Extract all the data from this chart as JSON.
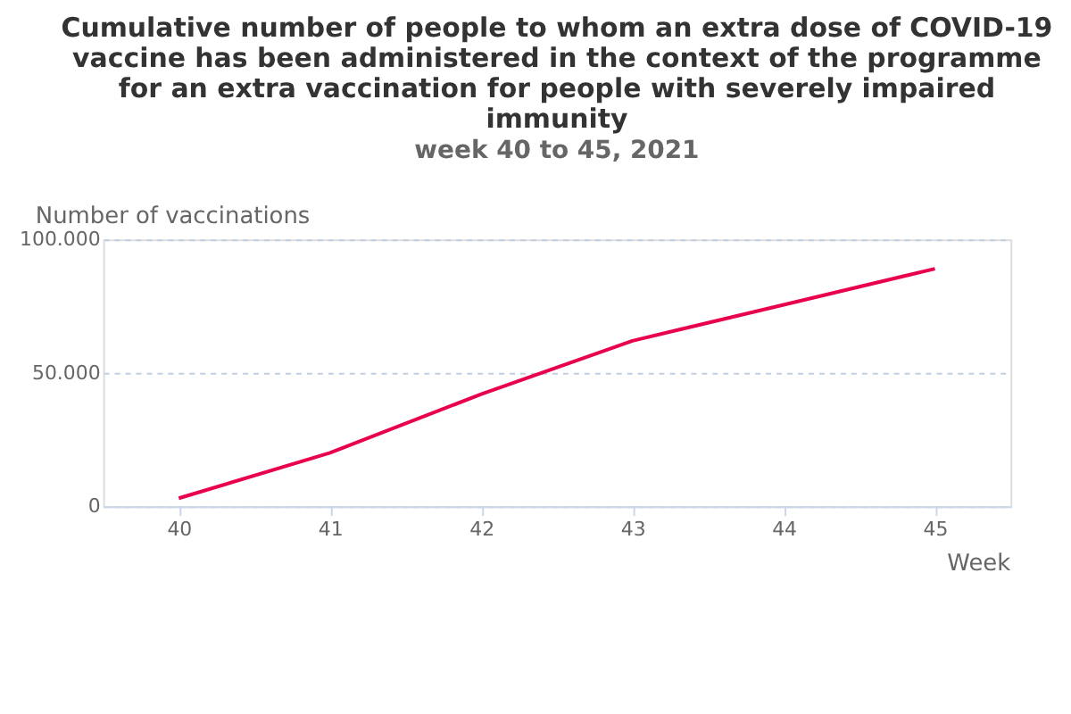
{
  "chart_data": {
    "type": "line",
    "title": "Cumulative number of people to whom an extra dose of COVID-19 vaccine has been administered in the context of the programme for an extra vaccination for people with severely impaired immunity",
    "subtitle": "week 40 to 45, 2021",
    "xlabel": "Week",
    "ylabel": "Number of vaccinations",
    "categories": [
      "40",
      "41",
      "42",
      "43",
      "44",
      "45"
    ],
    "series": [
      {
        "color": "#e8004c",
        "values": [
          3000,
          20000,
          42000,
          62000,
          75500,
          89000
        ]
      }
    ],
    "ylim": [
      0,
      100000
    ],
    "yticks": [
      {
        "value": 0,
        "label": "0"
      },
      {
        "value": 50000,
        "label": "50.000"
      },
      {
        "value": 100000,
        "label": "100.000"
      }
    ],
    "grid": "y",
    "marker": "none",
    "line_style": "solid"
  }
}
